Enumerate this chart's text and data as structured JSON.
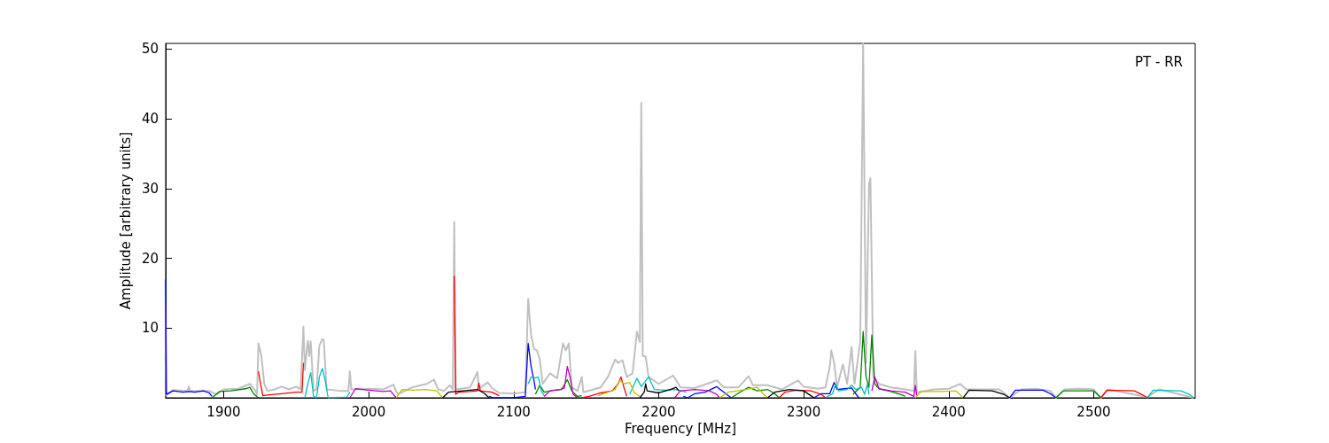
{
  "chart_data": {
    "type": "line",
    "xlabel": "Frequency [MHz]",
    "ylabel": "Amplitude [arbitrary units]",
    "annotations": [
      "PT - RR"
    ],
    "xlim": [
      1860,
      2570
    ],
    "ylim": [
      0,
      50.8
    ],
    "xticks": [
      1900,
      2000,
      2100,
      2200,
      2300,
      2400,
      2500
    ],
    "yticks": [
      10,
      20,
      30,
      40,
      50
    ],
    "grid": false,
    "marker": "none",
    "line_style": "solid",
    "series": [
      {
        "color": "#c0c0c0",
        "x": [
          1860,
          1865,
          1875,
          1876,
          1877,
          1890,
          1895,
          1900,
          1910,
          1918,
          1922,
          1923,
          1924,
          1926,
          1928,
          1930,
          1935,
          1940,
          1945,
          1950,
          1953,
          1955,
          1956,
          1958,
          1959,
          1960,
          1962,
          1964,
          1966,
          1968,
          1969,
          1971,
          1980,
          1986,
          1987,
          1988,
          2000,
          2010,
          2017,
          2020,
          2030,
          2040,
          2045,
          2048,
          2052,
          2056,
          2058,
          2059,
          2060,
          2070,
          2075,
          2076,
          2082,
          2085,
          2090,
          2100,
          2108,
          2110,
          2112,
          2114,
          2116,
          2118,
          2120,
          2125,
          2130,
          2134,
          2136,
          2138,
          2140,
          2144,
          2147,
          2148,
          2160,
          2165,
          2170,
          2172,
          2175,
          2178,
          2182,
          2185,
          2187,
          2188,
          2189,
          2191,
          2193,
          2200,
          2210,
          2215,
          2225,
          2240,
          2245,
          2255,
          2262,
          2265,
          2275,
          2285,
          2296,
          2300,
          2310,
          2315,
          2318,
          2319,
          2321,
          2323,
          2327,
          2330,
          2333,
          2335,
          2339,
          2341,
          2343,
          2345,
          2346,
          2348,
          2352,
          2360,
          2370,
          2376,
          2377,
          2378,
          2390,
          2400,
          2408,
          2412,
          2420,
          2435,
          2442,
          2450,
          2460,
          2470,
          2474,
          2480,
          2490,
          2500,
          2505,
          2510,
          2537,
          2545,
          2569
        ],
        "values": [
          0.3,
          1.1,
          1.0,
          1.6,
          1.0,
          1.0,
          0.5,
          1.2,
          1.3,
          2.0,
          1.0,
          0.5,
          7.8,
          6,
          2,
          1.0,
          1.2,
          1.6,
          1.2,
          1.6,
          1.2,
          10.2,
          4,
          8.2,
          6,
          8.1,
          1,
          1.2,
          7.5,
          8.4,
          8.3,
          1.2,
          1.0,
          1.0,
          3.8,
          1.2,
          1.3,
          1.2,
          1.9,
          0.5,
          1.5,
          2.0,
          2.6,
          1.2,
          1.0,
          1.8,
          1.2,
          25.2,
          1.2,
          1.5,
          3.7,
          1.3,
          2.2,
          1.4,
          0.7,
          0.6,
          0.8,
          14.2,
          9,
          7,
          6.8,
          5.5,
          2,
          3.5,
          2.8,
          7.8,
          6.8,
          7.8,
          1.5,
          1.0,
          3,
          0.8,
          1.5,
          3,
          5.5,
          5,
          5.4,
          3,
          3.5,
          9.5,
          8,
          42.3,
          6,
          5.9,
          3,
          2,
          3.2,
          1.5,
          1.4,
          2.5,
          1.5,
          1.5,
          3.1,
          1.8,
          1.8,
          1.2,
          2.5,
          1.6,
          1.3,
          1.5,
          4.5,
          6.8,
          5,
          1.5,
          4.8,
          2,
          7.3,
          2,
          8,
          50.8,
          5,
          30.5,
          31.5,
          3,
          2,
          1.5,
          1.2,
          1.0,
          6.7,
          0.8,
          1.2,
          1.3,
          2.0,
          1.2,
          1.2,
          1.2,
          0,
          1.2,
          1.3,
          1.0,
          0,
          1.2,
          1.3,
          1.2,
          0,
          1.2,
          0.1,
          1.2,
          0
        ]
      },
      {
        "color": "#0000ff",
        "x": [
          1860,
          1860.5,
          1865,
          1872,
          1876,
          1880,
          1886,
          1890,
          1892,
          1893,
          2083,
          2086,
          2100,
          2108,
          2110,
          2112,
          2114,
          2115,
          2116,
          2217,
          2220,
          2225,
          2232,
          2240,
          2245,
          2250,
          2251,
          2307,
          2312,
          2318,
          2321,
          2323,
          2328,
          2333,
          2338,
          2339,
          2442,
          2446,
          2465,
          2470,
          2474
        ],
        "values": [
          17,
          0.5,
          1.0,
          0.8,
          0.9,
          0.8,
          1.0,
          0.7,
          0.2,
          null,
          0.2,
          0,
          0,
          0.2,
          7.8,
          4.5,
          2.5,
          1.2,
          null,
          0.2,
          0,
          0.6,
          0.8,
          1.6,
          0.8,
          0,
          null,
          0,
          0.6,
          0.6,
          2.2,
          1.2,
          1.3,
          1.4,
          0,
          null,
          0,
          1.1,
          1.1,
          0.6,
          0
        ]
      },
      {
        "color": "#008000",
        "x": [
          1892,
          1897,
          1905,
          1915,
          1918,
          1921,
          1924,
          1925,
          2115,
          2118,
          2121,
          2128,
          2133,
          2137,
          2140,
          2144,
          2147,
          2148,
          2250,
          2256,
          2262,
          2268,
          2275,
          2280,
          2283,
          2284,
          2334,
          2339,
          2341,
          2343,
          2345,
          2347,
          2349,
          2352,
          2360,
          2368,
          2370,
          2371,
          2474,
          2479,
          2500,
          2505
        ],
        "values": [
          0,
          0.9,
          1.0,
          1.3,
          1.5,
          0.5,
          0,
          null,
          0.5,
          1.8,
          0.8,
          1.1,
          1.2,
          2.6,
          1.0,
          0.2,
          0.3,
          null,
          0,
          0.8,
          1.5,
          1.0,
          1.2,
          0.6,
          0,
          null,
          0.5,
          1.5,
          9.5,
          3,
          1.5,
          9,
          2,
          1.3,
          0.9,
          0.4,
          0.2,
          null,
          0,
          1.0,
          1.0,
          0
        ]
      },
      {
        "color": "#ff0000",
        "x": [
          1924,
          1925,
          1927,
          1930,
          1940,
          1950,
          1954,
          1955,
          1956,
          2058,
          2059,
          2060,
          2062,
          2070,
          2075,
          2076,
          2077,
          2085,
          2090,
          2091,
          2147,
          2152,
          2160,
          2168,
          2172,
          2174,
          2176,
          2178,
          2179,
          2283,
          2287,
          2295,
          2305,
          2312,
          2315,
          2316,
          2505,
          2509,
          2528,
          2533,
          2537
        ],
        "values": [
          3.8,
          2.5,
          0.3,
          0.4,
          0.6,
          0.8,
          0.8,
          5.0,
          null,
          null,
          17.5,
          0.5,
          0.8,
          0.9,
          1.0,
          2.1,
          1.0,
          0.8,
          0.3,
          null,
          0,
          0.2,
          0.7,
          1.0,
          2,
          3,
          1.5,
          0.2,
          null,
          0,
          0.8,
          1.1,
          1.0,
          0.5,
          0,
          null,
          0,
          1.1,
          1.0,
          0.5,
          0
        ]
      },
      {
        "color": "#00bfbf",
        "x": [
          1956,
          1958,
          1960,
          1962,
          1964,
          1966,
          1968,
          1970,
          1972,
          1985,
          1987,
          1988,
          2110,
          2112,
          2114,
          2117,
          2119,
          2121,
          2122,
          2180,
          2185,
          2188,
          2193,
          2197,
          2205,
          2212,
          2219,
          2220,
          2315,
          2320,
          2322,
          2324,
          2330,
          2333,
          2336,
          2340,
          2342,
          2344,
          2345,
          2346,
          2537,
          2541,
          2560,
          2566,
          2569
        ],
        "values": [
          0,
          2,
          3.6,
          0.2,
          0,
          3,
          4.2,
          2.5,
          0,
          0.1,
          0.8,
          null,
          2,
          3,
          2.8,
          3,
          1,
          0.3,
          null,
          0.5,
          2.8,
          1.6,
          3.0,
          1.2,
          1.1,
          1.2,
          0.8,
          null,
          0,
          0.6,
          2,
          1,
          1.2,
          1.8,
          1.2,
          1.5,
          0.5,
          2,
          0.5,
          null,
          0,
          1.1,
          1.0,
          0.5,
          0
        ]
      },
      {
        "color": "#bf00bf",
        "x": [
          1987,
          1991,
          2000,
          2010,
          2015,
          2019,
          2020,
          2121,
          2125,
          2132,
          2135,
          2137,
          2139,
          2141,
          2144,
          2145,
          2211,
          2215,
          2225,
          2235,
          2240,
          2242,
          2243,
          2347,
          2349,
          2352,
          2360,
          2370,
          2376,
          2377,
          2378
        ],
        "values": [
          0,
          1.3,
          1.1,
          0.9,
          1.0,
          0,
          null,
          0.2,
          1,
          1.2,
          1.4,
          4.5,
          2.8,
          0.5,
          0,
          null,
          0,
          1.0,
          1.2,
          1.0,
          0.5,
          0,
          null,
          1,
          3,
          1.3,
          1.0,
          0.8,
          0.2,
          1.8,
          0.3
        ]
      },
      {
        "color": "#bfbf00",
        "x": [
          2019,
          2023,
          2030,
          2040,
          2047,
          2051,
          2052,
          2158,
          2165,
          2170,
          2173,
          2176,
          2180,
          2183,
          2187,
          2188,
          2242,
          2248,
          2260,
          2268,
          2272,
          2275,
          2276,
          2377,
          2381,
          2395,
          2405,
          2410
        ],
        "values": [
          0,
          1.2,
          1.1,
          1.2,
          1.0,
          0,
          null,
          0.3,
          0.8,
          1.2,
          2.5,
          2.0,
          2.2,
          0.8,
          0.2,
          null,
          0,
          0.8,
          1.2,
          1.5,
          0.6,
          0,
          null,
          0,
          0.9,
          0.9,
          1.0,
          0
        ]
      },
      {
        "color": "#000000",
        "x": [
          2051,
          2055,
          2065,
          2075,
          2080,
          2083,
          2084,
          2187,
          2190,
          2191,
          2192,
          2200,
          2208,
          2212,
          2214,
          2215,
          2275,
          2280,
          2290,
          2300,
          2305,
          2307,
          2308,
          2410,
          2414,
          2430,
          2438,
          2442
        ],
        "values": [
          0,
          0.8,
          1.0,
          1.2,
          0.6,
          0,
          null,
          0,
          0.8,
          2,
          1,
          0.7,
          1.2,
          1.5,
          1.0,
          null,
          0,
          0.8,
          1.2,
          1.0,
          0.3,
          0,
          null,
          0,
          1.1,
          1.0,
          0.5,
          0
        ]
      }
    ]
  }
}
